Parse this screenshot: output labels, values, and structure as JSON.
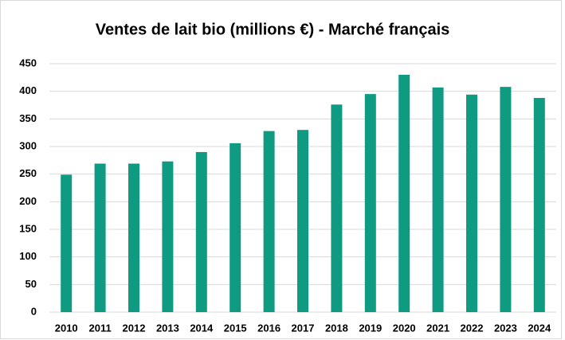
{
  "chart_data": {
    "type": "bar",
    "title": "Ventes de lait bio (millions €) - Marché français",
    "categories": [
      "2010",
      "2011",
      "2012",
      "2013",
      "2014",
      "2015",
      "2016",
      "2017",
      "2018",
      "2019",
      "2020",
      "2021",
      "2022",
      "2023",
      "2024"
    ],
    "values": [
      249,
      269,
      269,
      273,
      290,
      306,
      328,
      330,
      376,
      395,
      430,
      407,
      394,
      408,
      388
    ],
    "color": "#0f9a82",
    "ylim": [
      0,
      450
    ],
    "yticks": [
      0,
      50,
      100,
      150,
      200,
      250,
      300,
      350,
      400,
      450
    ],
    "grid": true
  }
}
